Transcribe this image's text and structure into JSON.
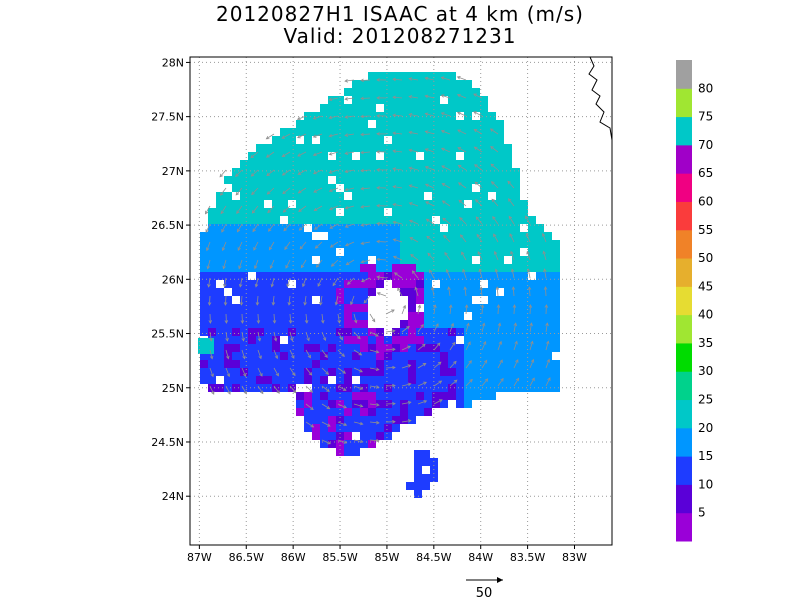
{
  "title_line1": "20120827H1 ISAAC at 4 km (m/s)",
  "title_line2": "Valid: 201208271231",
  "map": {
    "lon_range": [
      -87.1,
      -82.6
    ],
    "lat_range": [
      23.55,
      28.05
    ],
    "lon_ticks": [
      {
        "value": -87,
        "label": "87W"
      },
      {
        "value": -86.5,
        "label": "86.5W"
      },
      {
        "value": -86,
        "label": "86W"
      },
      {
        "value": -85.5,
        "label": "85.5W"
      },
      {
        "value": -85,
        "label": "85W"
      },
      {
        "value": -84.5,
        "label": "84.5W"
      },
      {
        "value": -84,
        "label": "84W"
      },
      {
        "value": -83.5,
        "label": "83.5W"
      },
      {
        "value": -83,
        "label": "83W"
      }
    ],
    "lat_ticks": [
      {
        "value": 24,
        "label": "24N"
      },
      {
        "value": 24.5,
        "label": "24.5N"
      },
      {
        "value": 25,
        "label": "25N"
      },
      {
        "value": 25.5,
        "label": "25.5N"
      },
      {
        "value": 26,
        "label": "26N"
      },
      {
        "value": 26.5,
        "label": "26.5N"
      },
      {
        "value": 27,
        "label": "27N"
      },
      {
        "value": 27.5,
        "label": "27.5N"
      },
      {
        "value": 28,
        "label": "28N"
      }
    ],
    "gridlines": "dotted",
    "storm_center": {
      "lon": -85.05,
      "lat": 25.75
    }
  },
  "colorbar": {
    "labels": [
      "5",
      "10",
      "15",
      "20",
      "25",
      "30",
      "35",
      "40",
      "45",
      "50",
      "55",
      "60",
      "65",
      "70",
      "75",
      "80"
    ],
    "colors": [
      "#9a00d8",
      "#5a00d8",
      "#1e3cff",
      "#0096ff",
      "#00c8c8",
      "#00d28c",
      "#00dc00",
      "#a0e632",
      "#e6dc32",
      "#e6af2d",
      "#f08228",
      "#fa3c3c",
      "#f00082",
      "#a000c8",
      "#00c8c8",
      "#a0e632",
      "#a0a0a0"
    ]
  },
  "vector_key": {
    "label": "50"
  }
}
